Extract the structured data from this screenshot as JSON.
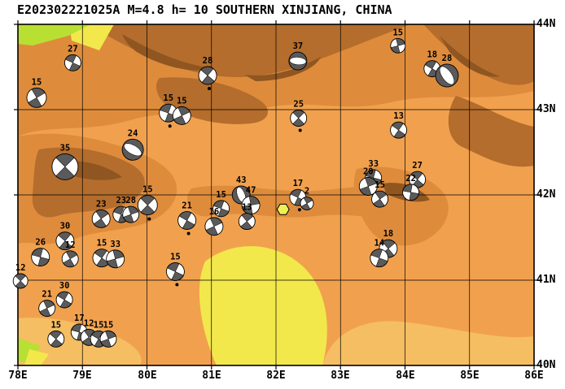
{
  "title": "E202302221025A M=4.8 h= 10 SOUTHERN XINJIANG, CHINA",
  "axes": {
    "x_ticks": [
      "78E",
      "79E",
      "80E",
      "81E",
      "82E",
      "83E",
      "84E",
      "85E",
      "86E"
    ],
    "y_ticks": [
      "44N",
      "43N",
      "42N",
      "41N",
      "40N"
    ],
    "lon_range": [
      78,
      86
    ],
    "lat_range": [
      40,
      44
    ]
  },
  "colors": {
    "base": "#F1A14E",
    "foothill": "#DE8C3C",
    "mountain": "#B46D2C",
    "ridge": "#905621",
    "lowland": "#F5BE62",
    "yellow": "#F2E84C",
    "green": "#B8E032",
    "ball_fill": "#5A5A5A",
    "epicenter": "#EDEF55",
    "frame": "#000000"
  },
  "map": {
    "epicenter": {
      "lon": 82.11,
      "lat": 41.83,
      "shape": "hexagon"
    },
    "events": [
      {
        "label": "27",
        "lon": 78.85,
        "lat": 43.55,
        "r": 10,
        "rot": 25,
        "type": "ss"
      },
      {
        "label": "15",
        "lon": 78.29,
        "lat": 43.14,
        "r": 12,
        "rot": 60,
        "type": "ss"
      },
      {
        "label": "28",
        "lon": 80.94,
        "lat": 43.4,
        "r": 11,
        "rot": 40,
        "type": "ss",
        "dot": true
      },
      {
        "label": "37",
        "lon": 82.34,
        "lat": 43.57,
        "r": 11,
        "rot": 5,
        "type": "th"
      },
      {
        "label": "15",
        "lon": 83.89,
        "lat": 43.75,
        "r": 9,
        "rot": 75,
        "type": "ss"
      },
      {
        "label": "18",
        "lon": 84.42,
        "lat": 43.48,
        "r": 10,
        "rot": 30,
        "type": "ss"
      },
      {
        "label": "28",
        "lon": 84.65,
        "lat": 43.4,
        "r": 14,
        "rot": 55,
        "type": "th"
      },
      {
        "label": "15",
        "lon": 80.33,
        "lat": 42.96,
        "r": 11,
        "rot": 20,
        "type": "ss",
        "dot": true
      },
      {
        "label": "15",
        "lon": 80.54,
        "lat": 42.93,
        "r": 11,
        "rot": 65,
        "type": "ss"
      },
      {
        "label": "25",
        "lon": 82.35,
        "lat": 42.9,
        "r": 10,
        "rot": 45,
        "type": "ss",
        "dot": true
      },
      {
        "label": "13",
        "lon": 83.9,
        "lat": 42.76,
        "r": 10,
        "rot": 35,
        "type": "ss"
      },
      {
        "label": "24",
        "lon": 79.78,
        "lat": 42.53,
        "r": 13,
        "rot": 30,
        "type": "th"
      },
      {
        "label": "35",
        "lon": 78.73,
        "lat": 42.33,
        "r": 16,
        "rot": 45,
        "type": "ss"
      },
      {
        "label": "33",
        "lon": 83.51,
        "lat": 42.2,
        "r": 10,
        "rot": 15,
        "type": "ss"
      },
      {
        "label": "20",
        "lon": 83.43,
        "lat": 42.1,
        "r": 11,
        "rot": 70,
        "type": "ss"
      },
      {
        "label": "27",
        "lon": 84.19,
        "lat": 42.18,
        "r": 10,
        "rot": 40,
        "type": "ss"
      },
      {
        "label": "22",
        "lon": 84.09,
        "lat": 42.03,
        "r": 10,
        "rot": 10,
        "type": "ss"
      },
      {
        "label": "15",
        "lon": 83.61,
        "lat": 41.95,
        "r": 10,
        "rot": 55,
        "type": "ss"
      },
      {
        "label": "17",
        "lon": 82.34,
        "lat": 41.97,
        "r": 10,
        "rot": 25,
        "type": "ss",
        "dot": true
      },
      {
        "label": "2",
        "lon": 82.48,
        "lat": 41.9,
        "r": 8,
        "rot": 60,
        "type": "ss"
      },
      {
        "label": "43",
        "lon": 81.46,
        "lat": 42.0,
        "r": 11,
        "rot": 70,
        "type": "th"
      },
      {
        "label": "47",
        "lon": 81.61,
        "lat": 41.88,
        "r": 11,
        "rot": 80,
        "type": "ss"
      },
      {
        "label": "15",
        "lon": 81.15,
        "lat": 41.84,
        "r": 10,
        "rot": 20,
        "type": "ss"
      },
      {
        "label": "13",
        "lon": 81.55,
        "lat": 41.69,
        "r": 10,
        "rot": 50,
        "type": "ss"
      },
      {
        "label": "16",
        "lon": 81.04,
        "lat": 41.63,
        "r": 11,
        "rot": 65,
        "type": "ss"
      },
      {
        "label": "15",
        "lon": 80.01,
        "lat": 41.88,
        "r": 12,
        "rot": 45,
        "type": "ss",
        "dot": true
      },
      {
        "label": "21",
        "lon": 80.62,
        "lat": 41.7,
        "r": 11,
        "rot": 30,
        "type": "ss",
        "dot": true
      },
      {
        "label": "23",
        "lon": 79.29,
        "lat": 41.72,
        "r": 11,
        "rot": 55,
        "type": "ss"
      },
      {
        "label": "23",
        "lon": 79.6,
        "lat": 41.77,
        "r": 10,
        "rot": 20,
        "type": "ss"
      },
      {
        "label": "28",
        "lon": 79.75,
        "lat": 41.77,
        "r": 10,
        "rot": 70,
        "type": "ss"
      },
      {
        "label": "30",
        "lon": 78.73,
        "lat": 41.46,
        "r": 11,
        "rot": 40,
        "type": "ss"
      },
      {
        "label": "26",
        "lon": 78.35,
        "lat": 41.27,
        "r": 11,
        "rot": 15,
        "type": "ss"
      },
      {
        "label": "12",
        "lon": 78.81,
        "lat": 41.25,
        "r": 10,
        "rot": 60,
        "type": "ss"
      },
      {
        "label": "15",
        "lon": 79.3,
        "lat": 41.26,
        "r": 11,
        "rot": 35,
        "type": "ss"
      },
      {
        "label": "33",
        "lon": 79.51,
        "lat": 41.25,
        "r": 11,
        "rot": 75,
        "type": "ss"
      },
      {
        "label": "15",
        "lon": 80.44,
        "lat": 41.1,
        "r": 11,
        "rot": 25,
        "type": "ss",
        "dot": true
      },
      {
        "label": "18",
        "lon": 83.74,
        "lat": 41.37,
        "r": 11,
        "rot": 50,
        "type": "ss"
      },
      {
        "label": "14",
        "lon": 83.6,
        "lat": 41.26,
        "r": 11,
        "rot": 20,
        "type": "ss"
      },
      {
        "label": "12",
        "lon": 78.04,
        "lat": 40.99,
        "r": 9,
        "rot": 45,
        "type": "ss"
      },
      {
        "label": "30",
        "lon": 78.72,
        "lat": 40.77,
        "r": 10,
        "rot": 30,
        "type": "ss"
      },
      {
        "label": "21",
        "lon": 78.45,
        "lat": 40.67,
        "r": 10,
        "rot": 65,
        "type": "ss"
      },
      {
        "label": "15",
        "lon": 78.59,
        "lat": 40.31,
        "r": 10,
        "rot": 40,
        "type": "ss"
      },
      {
        "label": "17",
        "lon": 78.95,
        "lat": 40.39,
        "r": 10,
        "rot": 15,
        "type": "ss"
      },
      {
        "label": "12",
        "lon": 79.1,
        "lat": 40.33,
        "r": 10,
        "rot": 55,
        "type": "ss"
      },
      {
        "label": "15",
        "lon": 79.25,
        "lat": 40.31,
        "r": 10,
        "rot": 30,
        "type": "ss"
      },
      {
        "label": "15",
        "lon": 79.4,
        "lat": 40.31,
        "r": 10,
        "rot": 70,
        "type": "ss"
      }
    ]
  }
}
